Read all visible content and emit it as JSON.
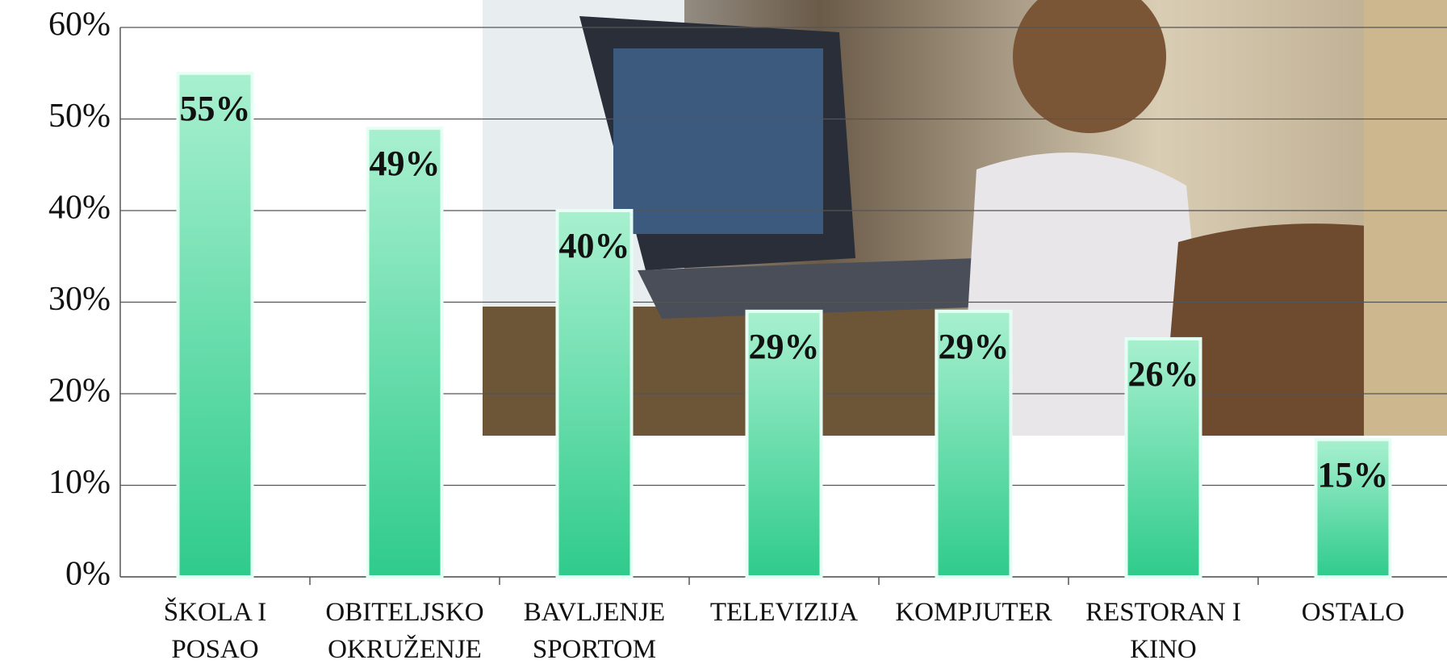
{
  "chart_data": {
    "type": "bar",
    "categories": [
      "ŠKOLA I\nPOSAO",
      "OBITELJSKO\nOKRUŽENJE",
      "BAVLJENJE\nSPORTOM",
      "TELEVIZIJA",
      "KOMPJUTER",
      "RESTORAN I\nKINO",
      "OSTALO"
    ],
    "values": [
      55,
      49,
      40,
      29,
      29,
      26,
      15
    ],
    "value_labels": [
      "55%",
      "49%",
      "40%",
      "29%",
      "29%",
      "26%",
      "15%"
    ],
    "color": "#2fcb8c",
    "ylim": [
      0,
      60
    ],
    "yticks": [
      {
        "value": 0,
        "label": "0%"
      },
      {
        "value": 10,
        "label": "10%"
      },
      {
        "value": 20,
        "label": "20%"
      },
      {
        "value": 30,
        "label": "30%"
      },
      {
        "value": 40,
        "label": "40%"
      },
      {
        "value": 50,
        "label": "50%"
      },
      {
        "value": 60,
        "label": "60%"
      }
    ],
    "grid": true
  }
}
